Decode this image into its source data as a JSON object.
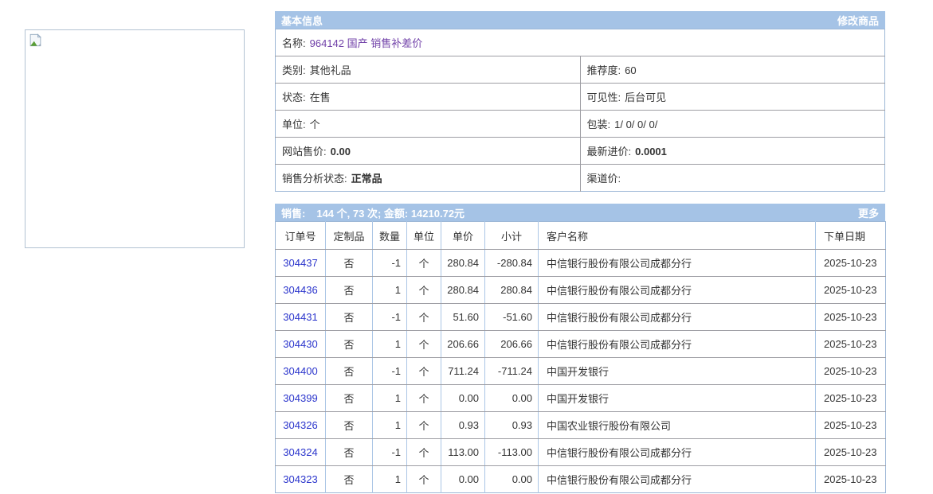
{
  "colors": {
    "accent_bar": "#a5c3e6",
    "link_blue": "#2b35cc",
    "product_name_purple": "#7040a8",
    "grid_line_gray": "#9e9ea4",
    "grid_line_blue": "#abc6e5",
    "panel_border": "#9db7d6"
  },
  "image_panel": {
    "icon": "broken-image-icon"
  },
  "basic_info": {
    "title": "基本信息",
    "action": "修改商品",
    "name_label": "名称:",
    "name_value": "964142 国产 销售补差价",
    "rows": [
      {
        "left_label": "类别:",
        "left_value": "其他礼品",
        "right_label": "推荐度:",
        "right_value": "60"
      },
      {
        "left_label": "状态:",
        "left_value": "在售",
        "right_label": "可见性:",
        "right_value": "后台可见"
      },
      {
        "left_label": "单位:",
        "left_value": "个",
        "right_label": "包装:",
        "right_value": "1/ 0/ 0/ 0/"
      },
      {
        "left_label": "网站售价:",
        "left_value": "0.00",
        "right_label": "最新进价:",
        "right_value": "0.0001"
      },
      {
        "left_label": "销售分析状态:",
        "left_value": "正常品",
        "right_label": "渠道价:",
        "right_value": ""
      }
    ]
  },
  "sales": {
    "title_label": "销售:",
    "summary": "144 个, 73 次; 金额: 14210.72元",
    "action": "更多",
    "columns": [
      "订单号",
      "定制品",
      "数量",
      "单位",
      "单价",
      "小计",
      "客户名称",
      "下单日期"
    ],
    "rows": [
      [
        "304437",
        "否",
        "-1",
        "个",
        "280.84",
        "-280.84",
        "中信银行股份有限公司成都分行",
        "2025-10-23"
      ],
      [
        "304436",
        "否",
        "1",
        "个",
        "280.84",
        "280.84",
        "中信银行股份有限公司成都分行",
        "2025-10-23"
      ],
      [
        "304431",
        "否",
        "-1",
        "个",
        "51.60",
        "-51.60",
        "中信银行股份有限公司成都分行",
        "2025-10-23"
      ],
      [
        "304430",
        "否",
        "1",
        "个",
        "206.66",
        "206.66",
        "中信银行股份有限公司成都分行",
        "2025-10-23"
      ],
      [
        "304400",
        "否",
        "-1",
        "个",
        "711.24",
        "-711.24",
        "中国开发银行",
        "2025-10-23"
      ],
      [
        "304399",
        "否",
        "1",
        "个",
        "0.00",
        "0.00",
        "中国开发银行",
        "2025-10-23"
      ],
      [
        "304326",
        "否",
        "1",
        "个",
        "0.93",
        "0.93",
        "中国农业银行股份有限公司",
        "2025-10-23"
      ],
      [
        "304324",
        "否",
        "-1",
        "个",
        "113.00",
        "-113.00",
        "中信银行股份有限公司成都分行",
        "2025-10-23"
      ],
      [
        "304323",
        "否",
        "1",
        "个",
        "0.00",
        "0.00",
        "中信银行股份有限公司成都分行",
        "2025-10-23"
      ]
    ]
  }
}
